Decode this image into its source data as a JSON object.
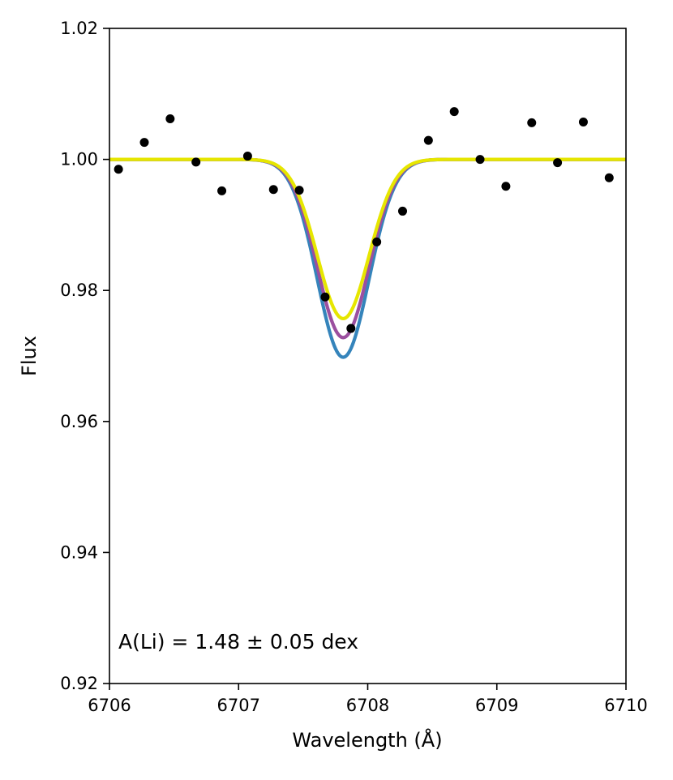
{
  "chart_data": {
    "type": "scatter",
    "title": "",
    "xlabel": "Wavelength (Å)",
    "ylabel": "Flux",
    "xlim": [
      6706,
      6710
    ],
    "ylim": [
      0.92,
      1.02
    ],
    "xticks": [
      6706,
      6707,
      6708,
      6709,
      6710
    ],
    "xtick_labels": [
      "6706",
      "6707",
      "6708",
      "6709",
      "6710"
    ],
    "yticks": [
      0.92,
      0.94,
      0.96,
      0.98,
      1.0,
      1.02
    ],
    "ytick_labels": [
      "0.92",
      "0.94",
      "0.96",
      "0.98",
      "1.00",
      "1.02"
    ],
    "grid": false,
    "annotation": "A(Li) = 1.48 ± 0.05 dex",
    "observed": {
      "color": "#000000",
      "x": [
        6706.07,
        6706.27,
        6706.47,
        6706.67,
        6706.87,
        6707.07,
        6707.27,
        6707.47,
        6707.67,
        6707.87,
        6708.07,
        6708.27,
        6708.47,
        6708.67,
        6708.87,
        6709.07,
        6709.27,
        6709.47,
        6709.67,
        6709.87
      ],
      "y": [
        0.9985,
        1.0026,
        1.0062,
        0.9996,
        0.9952,
        1.0005,
        0.9954,
        0.9953,
        0.979,
        0.9742,
        0.9874,
        0.9921,
        1.0029,
        1.0073,
        1.0,
        0.9959,
        1.0056,
        0.9995,
        1.0057,
        0.9972
      ]
    },
    "models": {
      "center": 6707.81,
      "width": 0.2,
      "series": [
        {
          "color": "#1f77b4",
          "alpha": 0.9,
          "depth": 0.0302
        },
        {
          "color": "#9b4f9f",
          "alpha": 1.0,
          "depth": 0.0272
        },
        {
          "color": "#e6e600",
          "alpha": 1.0,
          "depth": 0.0243
        }
      ]
    }
  }
}
